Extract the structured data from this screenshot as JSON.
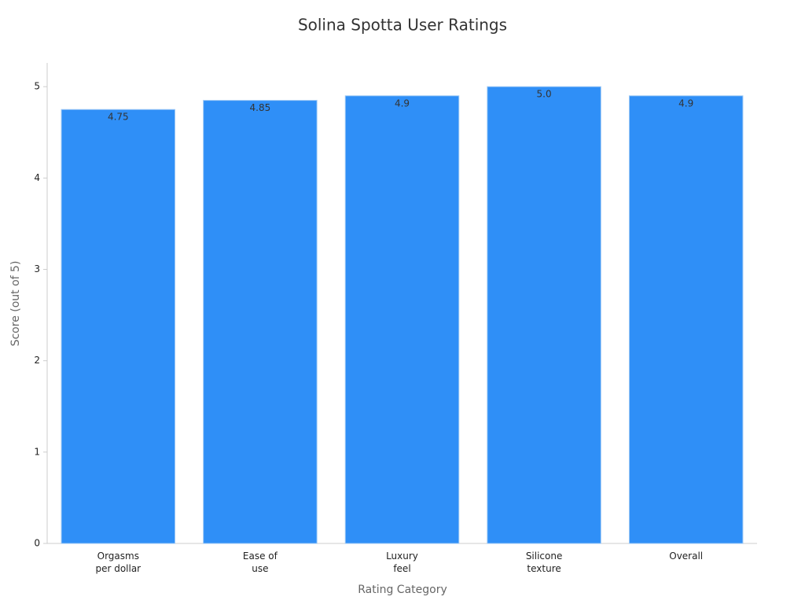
{
  "chart_data": {
    "type": "bar",
    "title": "Solina Spotta User Ratings",
    "x_label": "Rating Category",
    "y_label": "Score (out of 5)",
    "categories": [
      "Orgasms\nper dollar",
      "Ease of\nuse",
      "Luxury\nfeel",
      "Silicone\ntexture",
      "Overall"
    ],
    "values": [
      4.75,
      4.85,
      4.9,
      5.0,
      4.9
    ],
    "value_labels": [
      "4.75",
      "4.85",
      "4.9",
      "5.0",
      "4.9"
    ],
    "color": "#2f8ff7",
    "ylim": [
      0,
      5.26
    ],
    "yticks": [
      0,
      1,
      2,
      3,
      4,
      5
    ],
    "grid": false
  }
}
